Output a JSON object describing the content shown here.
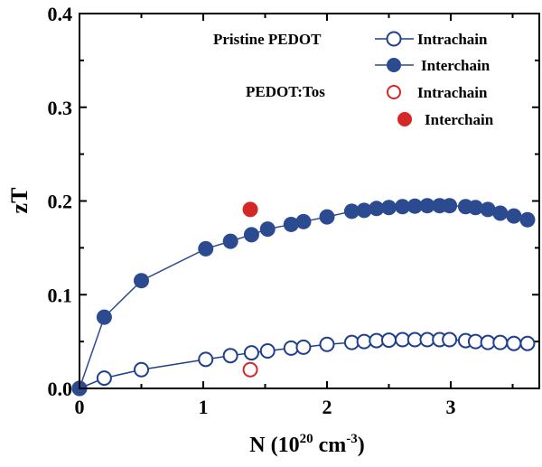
{
  "chart_data": {
    "type": "scatter",
    "title": "",
    "xlabel": "N (10",
    "xlabel_sup1": "20",
    "xlabel_mid": " cm",
    "xlabel_sup2": "-3",
    "xlabel_end": ")",
    "ylabel": "zT",
    "xlim": [
      0,
      3.7
    ],
    "ylim": [
      0,
      0.4
    ],
    "xticks": [
      "0",
      "1",
      "2",
      "3"
    ],
    "xtick_values": [
      0,
      1,
      2,
      3
    ],
    "yticks": [
      "0.0",
      "0.1",
      "0.2",
      "0.3",
      "0.4"
    ],
    "ytick_values": [
      0,
      0.1,
      0.2,
      0.3,
      0.4
    ],
    "grid": false,
    "legend_position": "top-right",
    "legend_groups": [
      "Pristine PEDOT",
      "PEDOT:Tos"
    ],
    "colors": {
      "blue": "#1f3f8f",
      "red": "#d62728"
    },
    "series": [
      {
        "name": "Intrachain",
        "group": "Pristine PEDOT",
        "marker": "open",
        "color": "#1f3f8f",
        "line": true,
        "x": [
          0,
          0.2,
          0.5,
          1.02,
          1.22,
          1.39,
          1.52,
          1.71,
          1.81,
          2.0,
          2.2,
          2.3,
          2.4,
          2.5,
          2.61,
          2.71,
          2.81,
          2.91,
          2.99,
          3.12,
          3.2,
          3.3,
          3.4,
          3.51,
          3.62
        ],
        "y": [
          0,
          0.011,
          0.02,
          0.031,
          0.035,
          0.038,
          0.04,
          0.043,
          0.044,
          0.047,
          0.049,
          0.05,
          0.051,
          0.0515,
          0.052,
          0.052,
          0.052,
          0.052,
          0.052,
          0.051,
          0.05,
          0.049,
          0.049,
          0.048,
          0.048
        ]
      },
      {
        "name": "Interchain",
        "group": "Pristine PEDOT",
        "marker": "filled",
        "color": "#2b4a8f",
        "line": true,
        "x": [
          0,
          0.2,
          0.5,
          1.02,
          1.22,
          1.39,
          1.52,
          1.71,
          1.81,
          2.0,
          2.2,
          2.3,
          2.4,
          2.5,
          2.61,
          2.71,
          2.81,
          2.91,
          2.99,
          3.12,
          3.2,
          3.3,
          3.4,
          3.51,
          3.62
        ],
        "y": [
          0,
          0.076,
          0.115,
          0.149,
          0.157,
          0.164,
          0.17,
          0.175,
          0.178,
          0.183,
          0.189,
          0.19,
          0.192,
          0.193,
          0.194,
          0.1945,
          0.195,
          0.195,
          0.195,
          0.194,
          0.193,
          0.191,
          0.187,
          0.184,
          0.18
        ]
      },
      {
        "name": "Intrachain",
        "group": "PEDOT:Tos",
        "marker": "open",
        "color": "#d62728",
        "line": false,
        "x": [
          1.38
        ],
        "y": [
          0.02
        ]
      },
      {
        "name": "Interchain",
        "group": "PEDOT:Tos",
        "marker": "filled",
        "color": "#d62728",
        "line": false,
        "x": [
          1.38
        ],
        "y": [
          0.191
        ]
      }
    ]
  }
}
